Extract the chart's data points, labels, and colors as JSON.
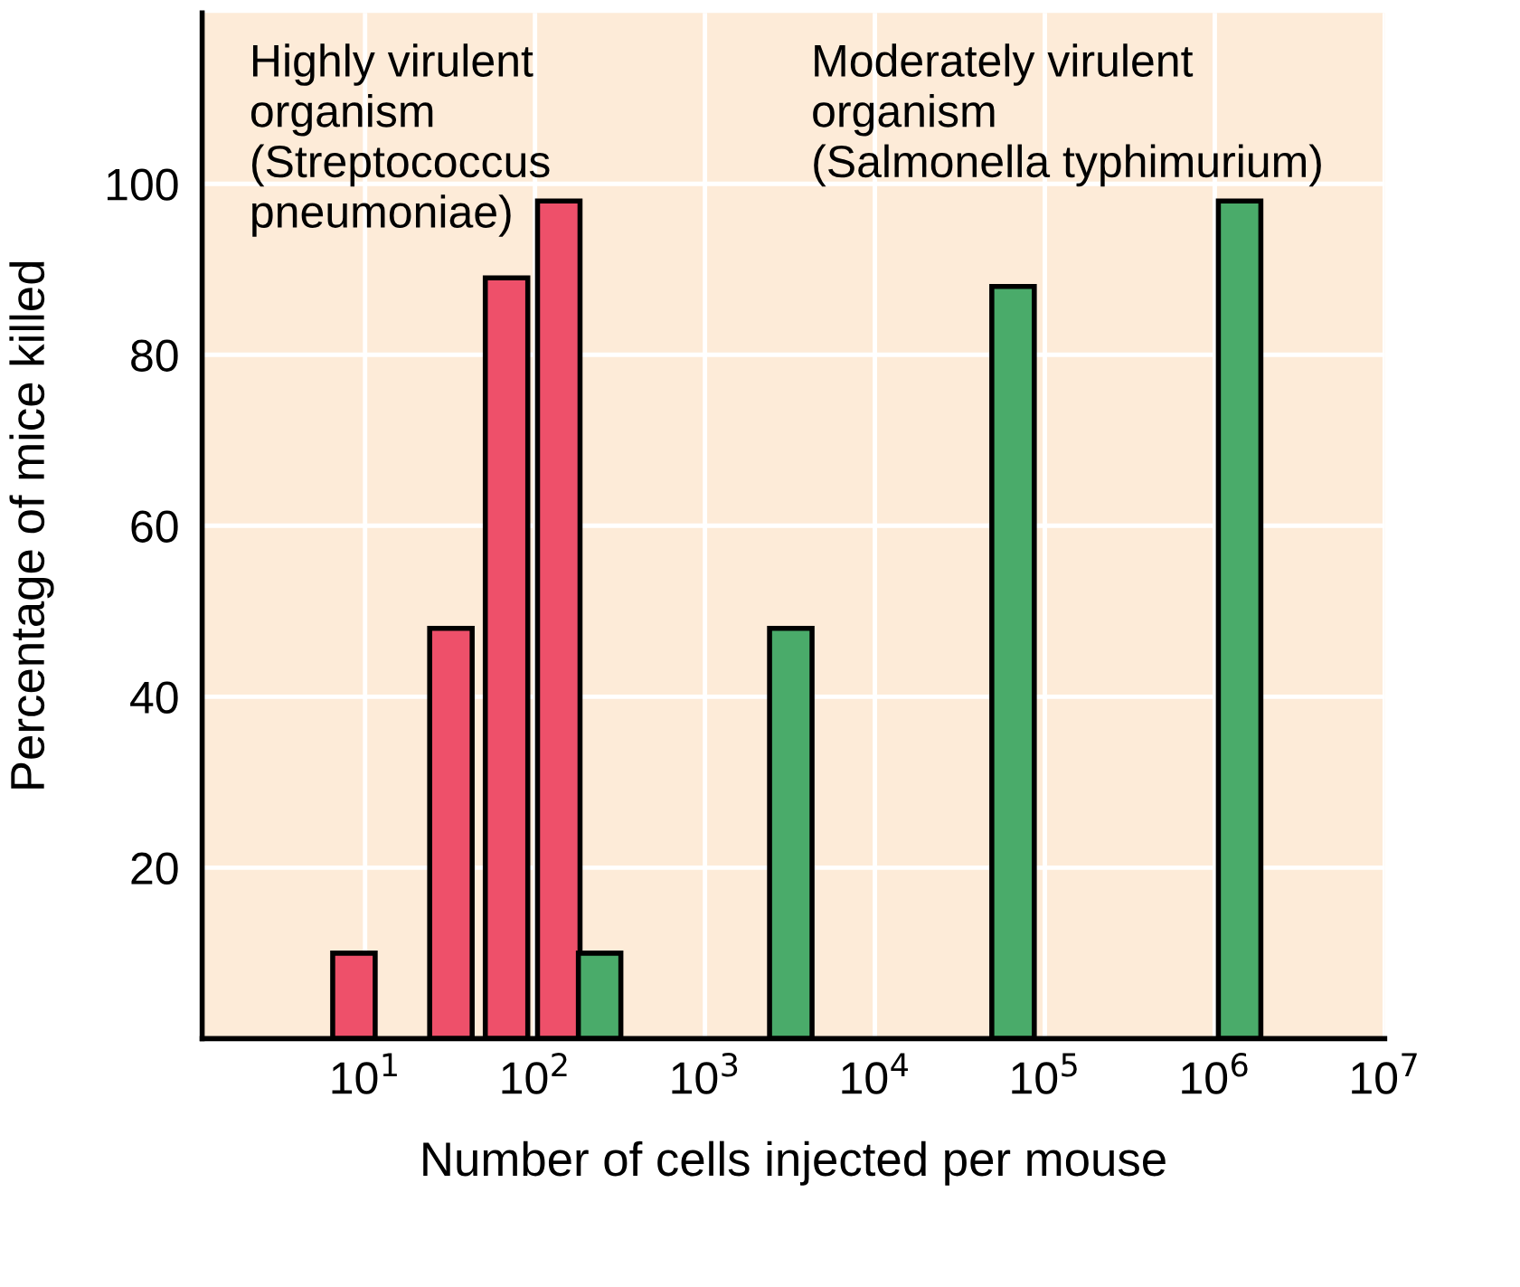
{
  "chart_data": {
    "type": "bar",
    "xlabel": "Number of cells injected per mouse",
    "ylabel": "Percentage of mice killed",
    "log": "x",
    "xlim": [
      1.1,
      10000000
    ],
    "ylim": [
      0,
      120
    ],
    "xticks": [
      {
        "value": 10,
        "label": "10$^{1}$"
      },
      {
        "value": 100,
        "label": "10$^{2}$"
      },
      {
        "value": 1000,
        "label": "10$^{3}$"
      },
      {
        "value": 10000,
        "label": "10$^{4}$"
      },
      {
        "value": 100000,
        "label": "10$^{5}$"
      },
      {
        "value": 1000000,
        "label": "10$^{6}$"
      },
      {
        "value": 10000000,
        "label": "10$^{7}$"
      }
    ],
    "yticks": [
      20,
      40,
      60,
      80,
      100
    ],
    "grid": true,
    "legend": false,
    "series": [
      {
        "name": "Highly virulent\norganism\n(Streptococcus\npneumoniae)",
        "color": "#ee506a",
        "x": [
          8.6,
          32,
          68,
          138
        ],
        "values": [
          10,
          48,
          89,
          98
        ]
      },
      {
        "name": "Moderately virulent\norganism\n(Salmonella typhimurium)",
        "color": "#4aab6a",
        "x": [
          240,
          3200,
          65000,
          1400000
        ],
        "values": [
          10,
          48,
          88,
          98
        ]
      }
    ]
  }
}
